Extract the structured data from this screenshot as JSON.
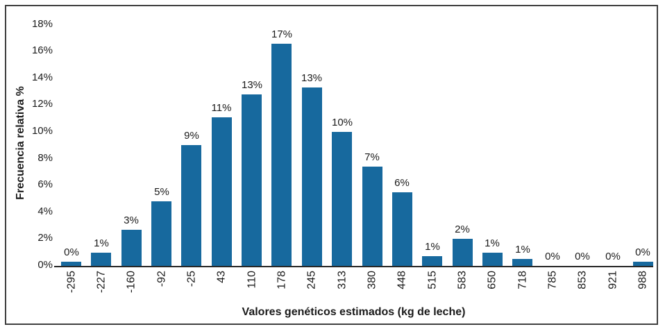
{
  "chart_data": {
    "type": "bar",
    "title": "",
    "xlabel": "Valores genéticos estimados (kg de leche)",
    "ylabel": "Frecuencia relativa %",
    "categories": [
      "-295",
      "-227",
      "-160",
      "-92",
      "-25",
      "43",
      "110",
      "178",
      "245",
      "313",
      "380",
      "448",
      "515",
      "583",
      "650",
      "718",
      "785",
      "853",
      "921",
      "988"
    ],
    "values": [
      0.3,
      1.0,
      2.7,
      4.8,
      9.0,
      11.1,
      12.8,
      16.6,
      13.3,
      10.0,
      7.4,
      5.5,
      0.7,
      2.0,
      1.0,
      0.5,
      0,
      0,
      0,
      0.3
    ],
    "bar_labels": [
      "0%",
      "1%",
      "3%",
      "5%",
      "9%",
      "11%",
      "13%",
      "17%",
      "13%",
      "10%",
      "7%",
      "6%",
      "1%",
      "2%",
      "1%",
      "1%",
      "0%",
      "0%",
      "0%",
      "0%"
    ],
    "y_ticks": [
      "0%",
      "2%",
      "4%",
      "6%",
      "8%",
      "10%",
      "12%",
      "14%",
      "16%",
      "18%"
    ],
    "y_tick_step": 2,
    "ylim": [
      0,
      18
    ],
    "grid": false,
    "legend": false,
    "colors": {
      "bar": "#17699e",
      "frame": "#3f3f3f",
      "axis": "#262626",
      "text": "#1a1a1a"
    }
  }
}
